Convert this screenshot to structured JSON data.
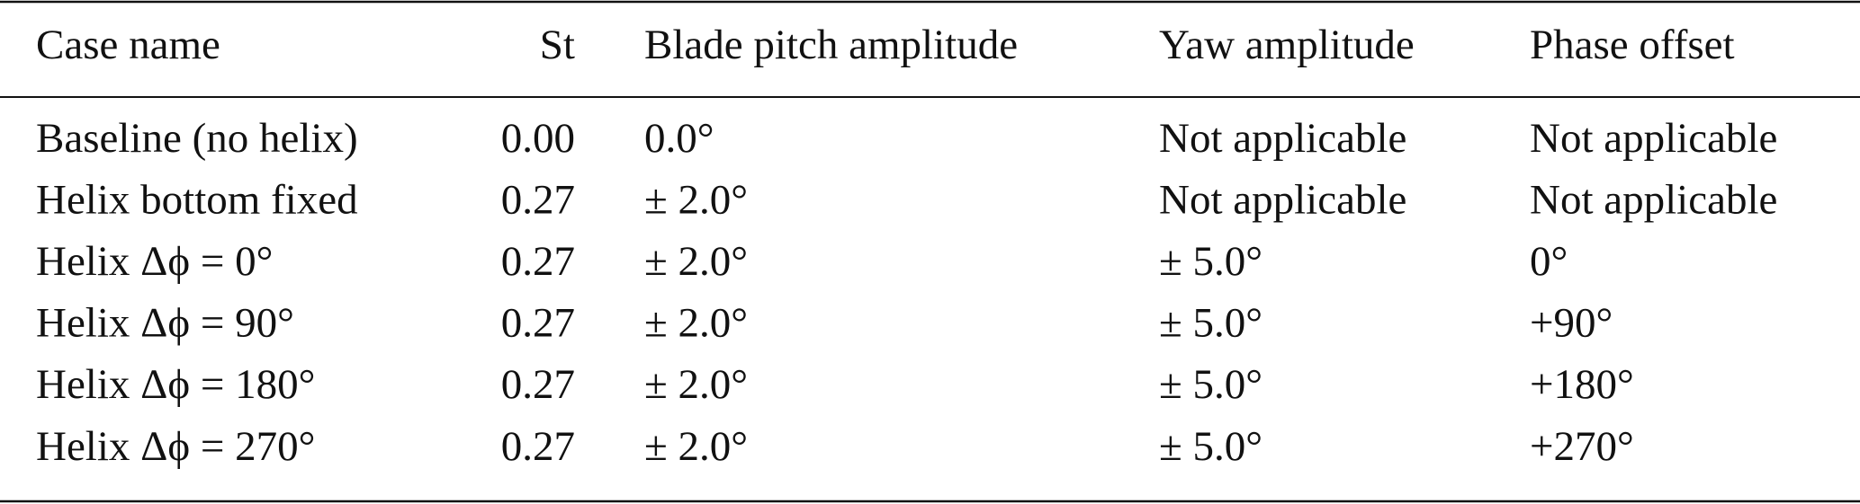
{
  "table": {
    "header": [
      "Case name",
      "St",
      "Blade pitch amplitude",
      "Yaw amplitude",
      "Phase offset"
    ],
    "rows": [
      [
        "Baseline (no helix)",
        "0.00",
        "0.0°",
        "Not applicable",
        "Not applicable"
      ],
      [
        "Helix bottom fixed",
        "0.27",
        "± 2.0°",
        "Not applicable",
        "Not applicable"
      ],
      [
        "Helix Δϕ = 0°",
        "0.27",
        "± 2.0°",
        "± 5.0°",
        "0°"
      ],
      [
        "Helix Δϕ = 90°",
        "0.27",
        "± 2.0°",
        "± 5.0°",
        "+90°"
      ],
      [
        "Helix Δϕ = 180°",
        "0.27",
        "± 2.0°",
        "± 5.0°",
        "+180°"
      ],
      [
        "Helix Δϕ = 270°",
        "0.27",
        "± 2.0°",
        "± 5.0°",
        "+270°"
      ]
    ]
  }
}
